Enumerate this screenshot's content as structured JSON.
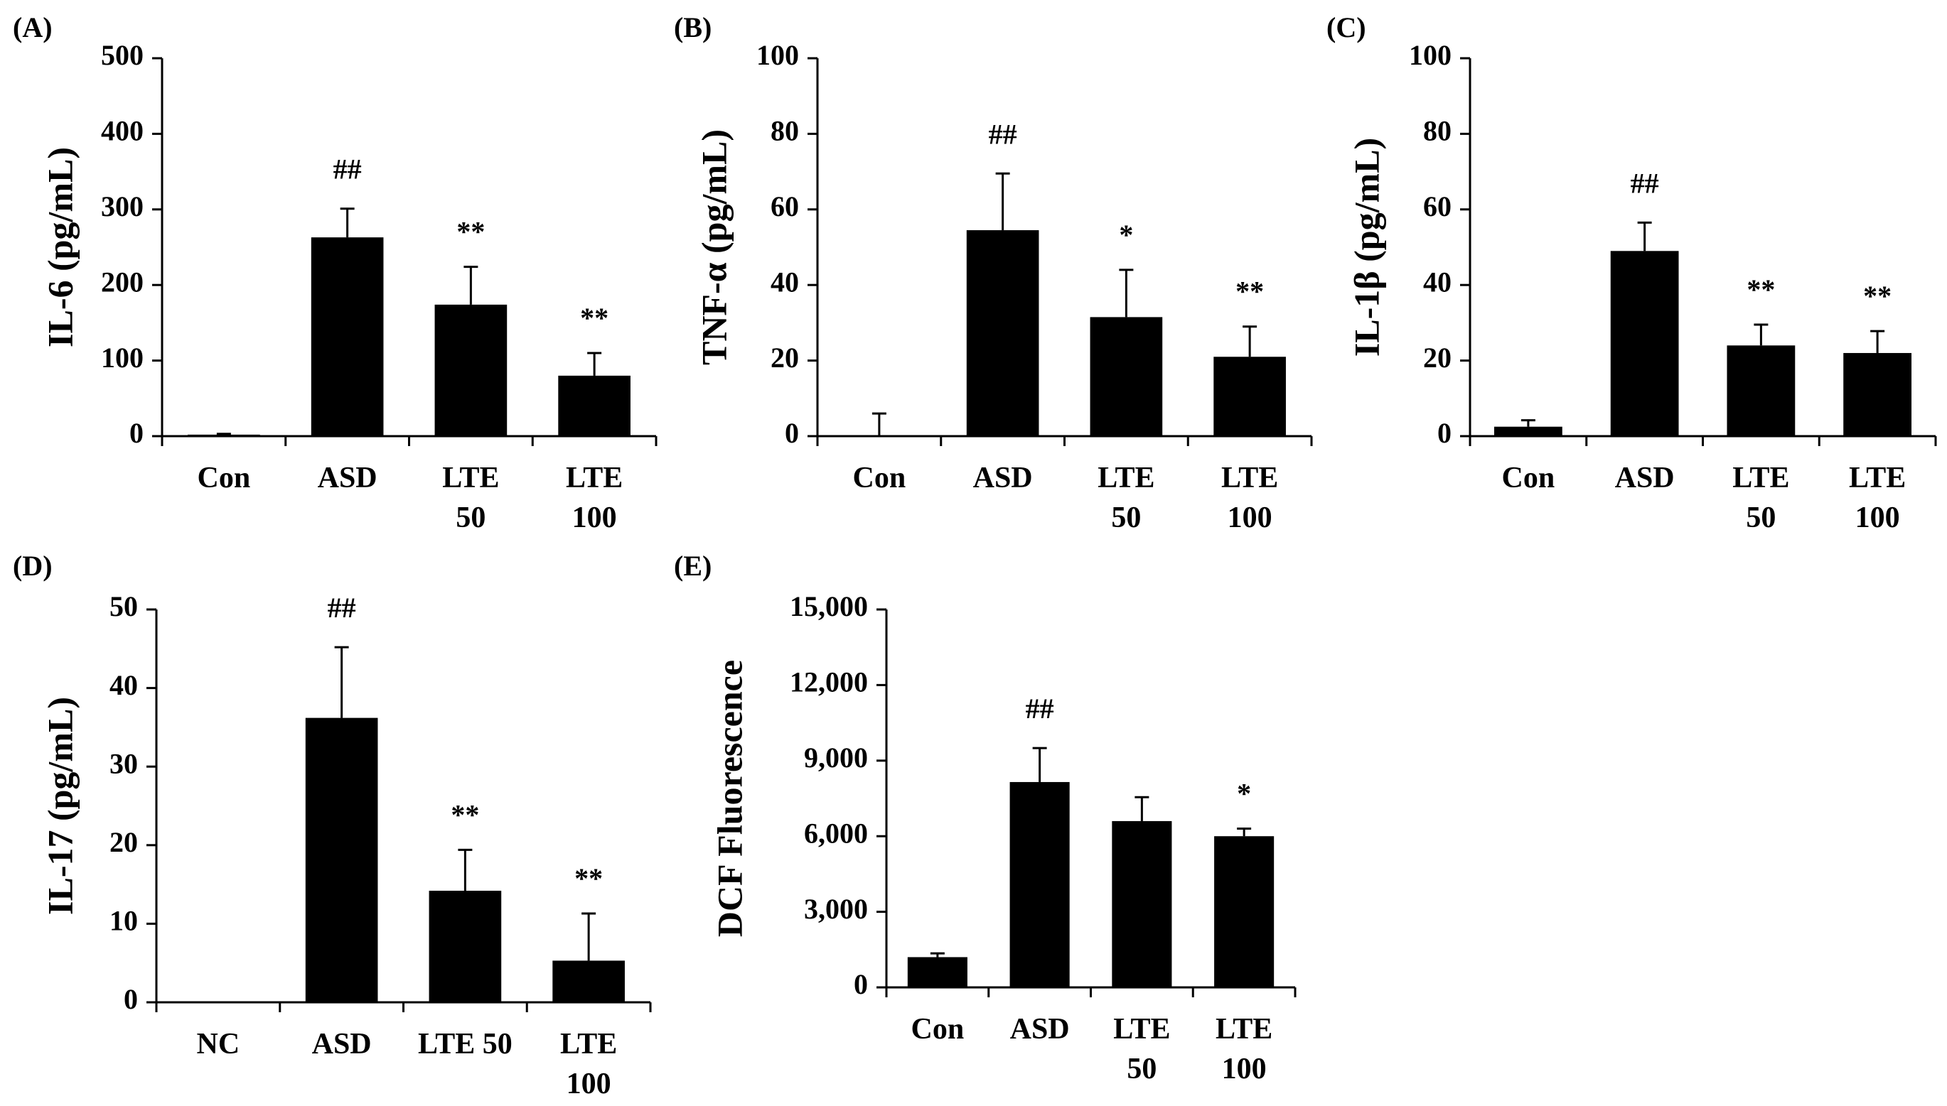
{
  "chart_data": [
    {
      "panel": "(A)",
      "type": "bar",
      "ylabel": "IL-6 (pg/mL)",
      "categories": [
        [
          "Con"
        ],
        [
          "ASD"
        ],
        [
          "LTE",
          "50"
        ],
        [
          "LTE",
          "100"
        ]
      ],
      "values": [
        2,
        263,
        174,
        80
      ],
      "errors": [
        1,
        38,
        50,
        30
      ],
      "significance": [
        "",
        "##",
        "**",
        "**"
      ],
      "yticks": [
        "0",
        "100",
        "200",
        "300",
        "400",
        "500"
      ],
      "ylim": [
        0,
        500
      ]
    },
    {
      "panel": "(B)",
      "type": "bar",
      "ylabel": "TNF-α (pg/mL)",
      "categories": [
        [
          "Con"
        ],
        [
          "ASD"
        ],
        [
          "LTE",
          "50"
        ],
        [
          "LTE",
          "100"
        ]
      ],
      "values": [
        0,
        54.5,
        31.5,
        21
      ],
      "errors": [
        6,
        15,
        12.5,
        8
      ],
      "significance": [
        "",
        "##",
        "*",
        "**"
      ],
      "yticks": [
        "0",
        "20",
        "40",
        "60",
        "80",
        "100"
      ],
      "ylim": [
        0,
        100
      ]
    },
    {
      "panel": "(C)",
      "type": "bar",
      "ylabel": "IL-1β (pg/mL)",
      "categories": [
        [
          "Con"
        ],
        [
          "ASD"
        ],
        [
          "LTE",
          "50"
        ],
        [
          "LTE",
          "100"
        ]
      ],
      "values": [
        2.5,
        49,
        24,
        22
      ],
      "errors": [
        1.7,
        7.5,
        5.5,
        5.8
      ],
      "significance": [
        "",
        "##",
        "**",
        "**"
      ],
      "yticks": [
        "0",
        "20",
        "40",
        "60",
        "80",
        "100"
      ],
      "ylim": [
        0,
        100
      ]
    },
    {
      "panel": "(D)",
      "type": "bar",
      "ylabel": "IL-17 (pg/mL)",
      "categories": [
        [
          "NC"
        ],
        [
          "ASD"
        ],
        [
          "LTE 50"
        ],
        [
          "LTE",
          "100"
        ]
      ],
      "values": [
        0,
        36.2,
        14.2,
        5.3
      ],
      "errors": [
        0,
        9,
        5.2,
        6
      ],
      "significance": [
        "",
        "##",
        "**",
        "**"
      ],
      "yticks": [
        "0",
        "10",
        "20",
        "30",
        "40",
        "50"
      ],
      "ylim": [
        0,
        50
      ]
    },
    {
      "panel": "(E)",
      "type": "bar",
      "ylabel": "DCF Fluorescence",
      "categories": [
        [
          "Con"
        ],
        [
          "ASD"
        ],
        [
          "LTE",
          "50"
        ],
        [
          "LTE",
          "100"
        ]
      ],
      "values": [
        1200,
        8150,
        6600,
        6000
      ],
      "errors": [
        150,
        1350,
        950,
        300
      ],
      "significance": [
        "",
        "##",
        "",
        "*"
      ],
      "yticks": [
        "0",
        "3,000",
        "6,000",
        "9,000",
        "12,000",
        "15,000"
      ],
      "ylim": [
        0,
        15000
      ]
    }
  ]
}
